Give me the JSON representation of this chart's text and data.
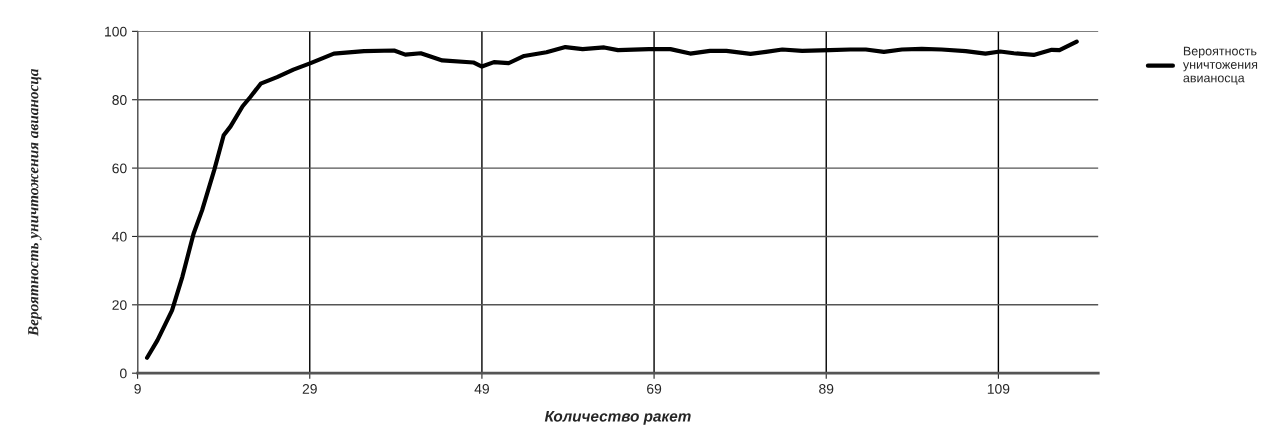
{
  "chart_data": {
    "type": "line",
    "xlabel": "Количество ракет",
    "ylabel": "Вероятность уничтожения авианосца",
    "xlim": [
      9,
      120.6
    ],
    "xticks": [
      9,
      29,
      49,
      69,
      89,
      109
    ],
    "ylim": [
      0,
      100
    ],
    "yticks": [
      0,
      20,
      40,
      60,
      80,
      100
    ],
    "grid": true,
    "legend": "right",
    "marker": "none",
    "line_style": "solid",
    "series": [
      {
        "name": "Вероятность уничтожения авианосца",
        "color": "#000000",
        "x": [
          10.1,
          11.3,
          13,
          14.2,
          15.5,
          16.5,
          17.9,
          19,
          19.8,
          21.2,
          22.1,
          23.3,
          25.2,
          27.1,
          29.1,
          31.8,
          35.3,
          38.8,
          40.1,
          41.9,
          44.4,
          48,
          49,
          50.4,
          52.1,
          53.9,
          56.5,
          58.7,
          60.7,
          63.2,
          64.8,
          68.4,
          70.9,
          73.2,
          75.5,
          77.4,
          80.2,
          82,
          83.9,
          86.2,
          89.4,
          91.8,
          93.6,
          95.7,
          97.8,
          100.1,
          102.4,
          105.2,
          107.5,
          109.2,
          110.8,
          113.1,
          115.2,
          116.1,
          118.1
        ],
        "values": [
          4.5,
          9.6,
          18.4,
          28.2,
          40.8,
          47.7,
          59.4,
          69.6,
          72.2,
          78.1,
          80.8,
          84.7,
          86.6,
          88.8,
          90.7,
          93.5,
          94.2,
          94.4,
          93.2,
          93.6,
          91.5,
          90.9,
          89.7,
          91,
          90.7,
          92.8,
          93.9,
          95.4,
          94.8,
          95.3,
          94.5,
          94.8,
          94.8,
          93.5,
          94.3,
          94.3,
          93.4,
          94,
          94.7,
          94.3,
          94.5,
          94.7,
          94.7,
          94,
          94.7,
          94.9,
          94.7,
          94.2,
          93.5,
          94.1,
          93.6,
          93.1,
          94.6,
          94.5,
          97
        ]
      }
    ]
  }
}
